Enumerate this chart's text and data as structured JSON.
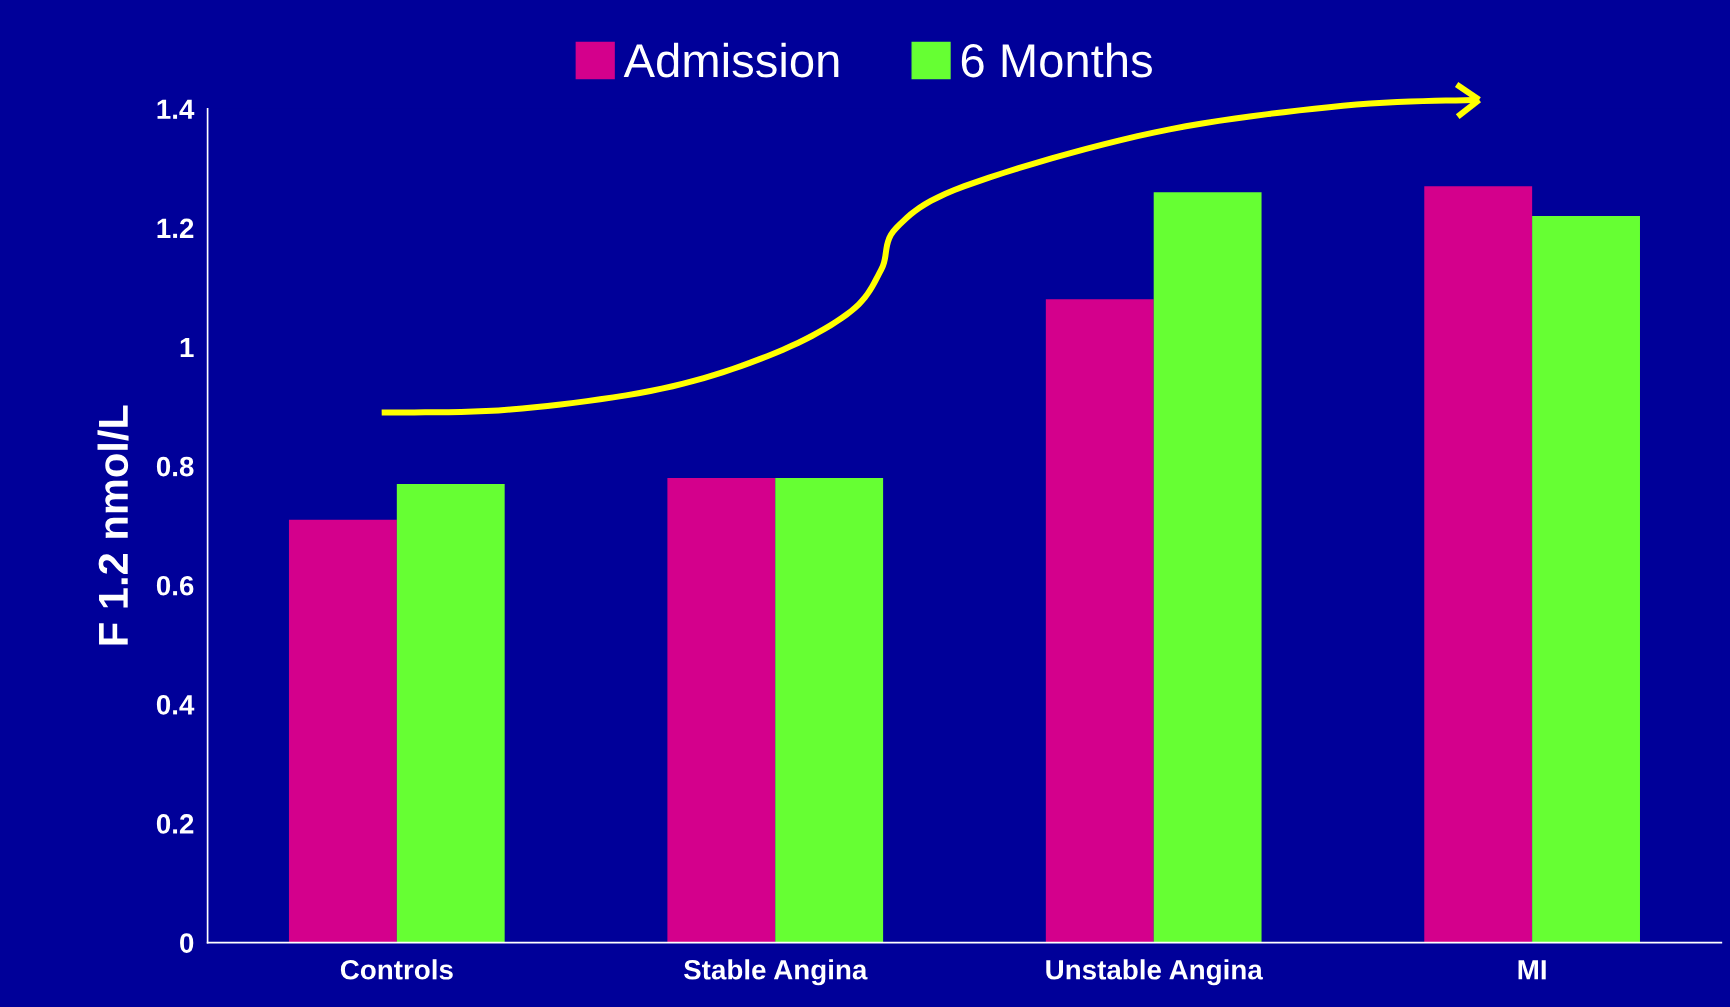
{
  "chart_data": {
    "type": "bar",
    "ylabel": "F 1.2 nmol/L",
    "categories": [
      "Controls",
      "Stable Angina",
      "Unstable Angina",
      "MI"
    ],
    "series": [
      {
        "name": "Admission",
        "color": "#d4008c",
        "values": [
          0.71,
          0.78,
          1.08,
          1.27
        ]
      },
      {
        "name": "6 Months",
        "color": "#66ff33",
        "values": [
          0.77,
          0.78,
          1.26,
          1.22
        ]
      }
    ],
    "ylim": [
      0,
      1.4
    ],
    "yticks": [
      0,
      0.2,
      0.4,
      0.6,
      0.8,
      1,
      1.2,
      1.4
    ],
    "grid": false,
    "legend": "top"
  }
}
